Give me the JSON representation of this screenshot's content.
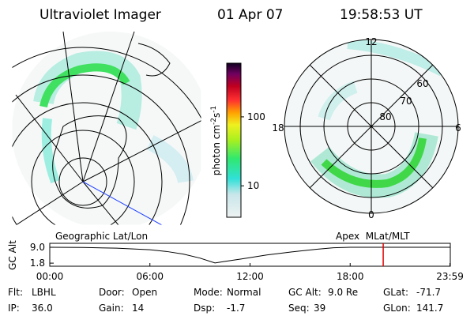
{
  "header": {
    "title": "Ultraviolet Imager",
    "date": "01 Apr 07",
    "time": "19:58:53 UT"
  },
  "colorbar": {
    "label": "photon cm",
    "exp1": "-2",
    "unit2": "s",
    "exp2": "-1",
    "log": true,
    "ylim": [
      3.5,
      600
    ],
    "yticks": [
      10,
      100
    ]
  },
  "polar_plot": {
    "mlt_labels": [
      "12",
      "18",
      "6",
      "0"
    ],
    "lat_labels": [
      "60",
      "70",
      "80"
    ]
  },
  "timeline": {
    "left_label": "Geographic Lat/Lon",
    "right_label": "Apex  MLat/MLT",
    "ylabel": "GC Alt",
    "yticks": [
      {
        "value": 9.0,
        "label": "9.0"
      },
      {
        "value": 1.8,
        "label": "1.8"
      }
    ],
    "ylim": [
      0.4,
      10.8
    ],
    "xticks": [
      {
        "value": 0,
        "label": "00:00"
      },
      {
        "value": 6,
        "label": "06:00"
      },
      {
        "value": 12,
        "label": "12:00"
      },
      {
        "value": 18,
        "label": "18:00"
      },
      {
        "value": 23.98,
        "label": "23:59"
      }
    ],
    "xlim": [
      0,
      24
    ],
    "current_time": 19.98,
    "marker_color": "#e00000",
    "x": [
      0,
      2,
      4,
      6,
      7,
      8,
      9,
      9.9,
      10.5,
      11.5,
      13,
      14.5,
      16,
      17,
      18,
      20,
      22,
      24
    ],
    "values": [
      9.0,
      8.9,
      8.6,
      7.9,
      7.1,
      5.9,
      4.1,
      1.9,
      2.6,
      3.7,
      5.5,
      6.9,
      8.1,
      8.8,
      9.0,
      9.0,
      9.0,
      9.0
    ]
  },
  "footer": [
    {
      "label": "Flt:",
      "value": "LBHL"
    },
    {
      "label": "IP:",
      "value": "36.0"
    },
    {
      "label": "Door:",
      "value": "Open"
    },
    {
      "label": "Gain:",
      "value": "14"
    },
    {
      "label": "Mode:",
      "value": "Normal"
    },
    {
      "label": "Dsp:",
      "value": "-1.7"
    },
    {
      "label": "GC Alt:",
      "value": "9.0 Re"
    },
    {
      "label": "Seq:",
      "value": "39"
    },
    {
      "label": "GLat:",
      "value": "-71.7"
    },
    {
      "label": "GLon:",
      "value": "141.7"
    }
  ]
}
